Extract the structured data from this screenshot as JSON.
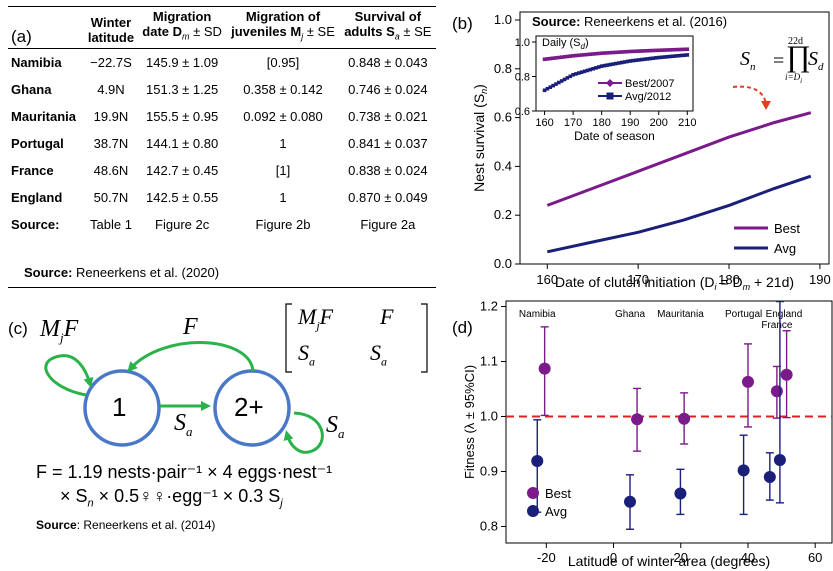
{
  "panel_a": {
    "label": "(a)",
    "headers": [
      "",
      "Winter latitude",
      "Migration date D_m ± SD",
      "Migration of juveniles M_j ± SE",
      "Survival of adults S_a ± SE"
    ],
    "header_lines": [
      [
        "",
        ""
      ],
      [
        "Winter",
        "latitude"
      ],
      [
        "Migration",
        "date D",
        "m",
        " ± SD"
      ],
      [
        "Migration of",
        "juveniles M",
        "j",
        " ± SE"
      ],
      [
        "Survival of",
        "adults S",
        "a",
        " ± SE"
      ]
    ],
    "rows": [
      [
        "Namibia",
        "−22.7S",
        "145.9 ± 1.09",
        "[0.95]",
        "0.848 ± 0.043"
      ],
      [
        "Ghana",
        "4.9N",
        "151.3 ± 1.25",
        "0.358 ± 0.142",
        "0.746 ± 0.024"
      ],
      [
        "Mauritania",
        "19.9N",
        "155.5 ± 0.95",
        "0.092 ± 0.080",
        "0.738 ± 0.021"
      ],
      [
        "Portugal",
        "38.7N",
        "144.1 ± 0.80",
        "1",
        "0.841 ± 0.037"
      ],
      [
        "France",
        "48.6N",
        "142.7 ± 0.45",
        "[1]",
        "0.838 ± 0.024"
      ],
      [
        "England",
        "50.7N",
        "142.5 ± 0.55",
        "1",
        "0.870 ± 0.049"
      ]
    ],
    "source_row": [
      "Source:",
      "Table 1",
      "Figure 2c",
      "Figure 2b",
      "Figure 2a"
    ],
    "source_bold": "Source:",
    "source_text": " Reneerkens et al. (2020)"
  },
  "panel_b": {
    "label": "(b)",
    "source_bold": "Source:",
    "source_text": " Reneerkens et al. (2016)",
    "inset_title": "Daily (S",
    "inset_title_sub": "d",
    "inset_xlabel": "Date of season",
    "equation_lhs": "S",
    "equation_lhs_sub": "n",
    "equation_prod_top": "22d",
    "equation_prod_bottom": "i=D",
    "equation_prod_bottom_sub": "i",
    "equation_rhs": "S",
    "equation_rhs_sub": "d"
  },
  "panel_c": {
    "label": "(c)",
    "node1": "1",
    "node2": "2+",
    "edge_self1": "M",
    "edge_self1_sub": "j",
    "edge_self1_tail": "F",
    "edge_back": "F",
    "edge_forward": "S",
    "edge_forward_sub": "a",
    "edge_self2": "S",
    "edge_self2_sub": "a",
    "matrix": [
      [
        "M",
        "j",
        "F",
        "F"
      ],
      [
        "S",
        "a",
        "S",
        "a"
      ]
    ],
    "eq_line1": "F = 1.19 nests·pair⁻¹ × 4 eggs·nest⁻¹",
    "eq_line2": "× S",
    "eq_line2_sub": "n",
    "eq_line2_mid": " × 0.5♀♀·egg⁻¹ × 0.3 S",
    "eq_line2_sub2": "j",
    "source_bold": "Source",
    "source_text": ": Reneerkens et al. (2014)"
  },
  "panel_d": {
    "label": "(d)"
  },
  "colors": {
    "best": "#7b1a8a",
    "avg": "#1a1f7a",
    "green": "#2ab34a",
    "node": "#4a78c8",
    "red": "#e02020",
    "arrow_red": "#e04020"
  },
  "chart_data": [
    {
      "id": "nest-survival",
      "type": "line",
      "xlabel": "Date of clutch initiation (D",
      "xlabel_sub1": "i",
      "xlabel_mid": " = D",
      "xlabel_sub2": "m",
      "xlabel_tail": " + 21d)",
      "ylabel": "Nest survival (S",
      "ylabel_sub": "n",
      "ylabel_tail": ")",
      "xlim": [
        157,
        191
      ],
      "ylim": [
        0,
        1.0
      ],
      "xticks": [
        160,
        170,
        180,
        190
      ],
      "yticks": [
        0.0,
        0.2,
        0.4,
        0.6,
        0.8,
        1.0
      ],
      "ytick_labels": [
        "0.0",
        "0.2",
        "0.4",
        "0.6",
        "0.8",
        "1.0"
      ],
      "legend": "bottom-right",
      "series": [
        {
          "name": "Best",
          "color": "#7b1a8a",
          "x": [
            160,
            165,
            170,
            175,
            180,
            185,
            189
          ],
          "y": [
            0.24,
            0.31,
            0.38,
            0.45,
            0.52,
            0.58,
            0.62
          ]
        },
        {
          "name": "Avg",
          "color": "#1a1f7a",
          "x": [
            160,
            165,
            170,
            175,
            180,
            185,
            189
          ],
          "y": [
            0.05,
            0.09,
            0.13,
            0.18,
            0.24,
            0.31,
            0.36
          ]
        }
      ]
    },
    {
      "id": "daily-survival-inset",
      "type": "scatter",
      "xlabel": "Date of season",
      "ylabel": "",
      "xlim": [
        157,
        212
      ],
      "ylim": [
        0.6,
        1.0
      ],
      "xticks": [
        160,
        170,
        180,
        190,
        200,
        210
      ],
      "yticks": [
        0.6,
        0.8,
        1.0
      ],
      "ytick_labels": [
        "0.6",
        "0.8",
        "1.0"
      ],
      "legend": "bottom-right",
      "series": [
        {
          "name": "Best/2007",
          "color": "#7b1a8a",
          "x": [
            160,
            170,
            180,
            190,
            200,
            210
          ],
          "y": [
            0.9,
            0.92,
            0.935,
            0.945,
            0.952,
            0.958
          ]
        },
        {
          "name": "Avg/2012",
          "color": "#1a1f7a",
          "x": [
            160,
            170,
            180,
            190,
            200,
            210
          ],
          "y": [
            0.72,
            0.81,
            0.86,
            0.89,
            0.91,
            0.925
          ]
        }
      ]
    },
    {
      "id": "fitness",
      "type": "scatter",
      "xlabel": "Latitude of winter area (degrees)",
      "ylabel": "Fitness (λ ± 95%CI)",
      "xlim": [
        -32,
        65
      ],
      "ylim": [
        0.77,
        1.21
      ],
      "xticks": [
        -20,
        0,
        20,
        40,
        60
      ],
      "yticks": [
        0.8,
        0.9,
        1.0,
        1.1,
        1.2
      ],
      "ytick_labels": [
        "0.8",
        "0.9",
        "1.0",
        "1.1",
        "1.2"
      ],
      "reference_line": 1.0,
      "legend": "bottom-left",
      "site_labels": [
        {
          "text": "Namibia",
          "x": -22.7
        },
        {
          "text": "Ghana",
          "x": 4.9
        },
        {
          "text": "Mauritania",
          "x": 19.9
        },
        {
          "text": "Portugal",
          "x": 38.7
        },
        {
          "text": "France",
          "x": 48.6
        },
        {
          "text": "England",
          "x": 50.7
        }
      ],
      "series": [
        {
          "name": "Best",
          "color": "#7b1a8a",
          "x": [
            -20.5,
            7,
            21,
            40,
            48.6,
            51.5
          ],
          "y": [
            1.087,
            0.995,
            0.996,
            1.063,
            1.046,
            1.076
          ],
          "lo": [
            1.002,
            0.937,
            0.95,
            0.981,
            0.997,
            0.998
          ],
          "hi": [
            1.163,
            1.051,
            1.043,
            1.132,
            1.091,
            1.156
          ]
        },
        {
          "name": "Avg",
          "color": "#1a1f7a",
          "x": [
            -22.7,
            4.9,
            19.9,
            38.7,
            46.5,
            49.5
          ],
          "y": [
            0.919,
            0.845,
            0.86,
            0.902,
            0.89,
            0.921
          ],
          "lo": [
            0.826,
            0.795,
            0.822,
            0.822,
            0.848,
            0.843
          ],
          "hi": [
            0.994,
            0.894,
            0.904,
            0.966,
            0.934,
            1.209
          ]
        }
      ]
    }
  ]
}
